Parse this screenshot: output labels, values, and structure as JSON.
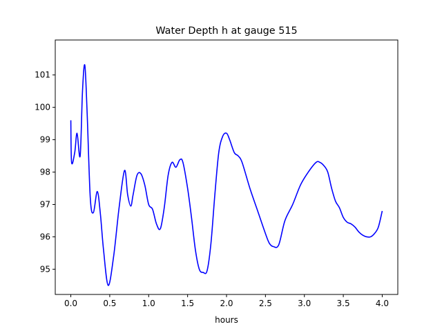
{
  "chart_data": {
    "type": "line",
    "title": "Water Depth h at gauge 515",
    "xlabel": "hours",
    "ylabel": "",
    "xlim": [
      -0.2,
      4.2
    ],
    "ylim": [
      94.22,
      102.08
    ],
    "grid": false,
    "xticks": [
      0.0,
      0.5,
      1.0,
      1.5,
      2.0,
      2.5,
      3.0,
      3.5,
      4.0
    ],
    "xtick_labels": [
      "0.0",
      "0.5",
      "1.0",
      "1.5",
      "2.0",
      "2.5",
      "3.0",
      "3.5",
      "4.0"
    ],
    "yticks": [
      95,
      96,
      97,
      98,
      99,
      100,
      101
    ],
    "ytick_labels": [
      "95",
      "96",
      "97",
      "98",
      "99",
      "100",
      "101"
    ],
    "series": [
      {
        "color": "#0000ff",
        "x": [
          0.0,
          0.01,
          0.05,
          0.08,
          0.12,
          0.15,
          0.18,
          0.21,
          0.25,
          0.29,
          0.34,
          0.38,
          0.42,
          0.48,
          0.55,
          0.62,
          0.69,
          0.73,
          0.77,
          0.8,
          0.85,
          0.9,
          0.95,
          1.0,
          1.05,
          1.1,
          1.15,
          1.2,
          1.25,
          1.3,
          1.35,
          1.4,
          1.44,
          1.5,
          1.55,
          1.6,
          1.65,
          1.7,
          1.75,
          1.8,
          1.85,
          1.9,
          1.95,
          2.0,
          2.04,
          2.1,
          2.15,
          2.2,
          2.3,
          2.4,
          2.5,
          2.55,
          2.6,
          2.67,
          2.75,
          2.85,
          2.95,
          3.05,
          3.15,
          3.2,
          3.25,
          3.3,
          3.35,
          3.4,
          3.45,
          3.5,
          3.55,
          3.6,
          3.65,
          3.7,
          3.75,
          3.8,
          3.85,
          3.9,
          3.95,
          4.0
        ],
        "y": [
          99.6,
          98.3,
          98.6,
          99.2,
          98.5,
          100.5,
          101.3,
          99.8,
          97.2,
          96.75,
          97.4,
          96.7,
          95.6,
          94.5,
          95.4,
          96.9,
          98.05,
          97.3,
          96.95,
          97.3,
          97.9,
          97.95,
          97.6,
          97.0,
          96.85,
          96.4,
          96.25,
          96.9,
          97.9,
          98.3,
          98.15,
          98.38,
          98.3,
          97.5,
          96.6,
          95.6,
          95.0,
          94.9,
          94.95,
          95.8,
          97.3,
          98.6,
          99.1,
          99.2,
          99.0,
          98.6,
          98.5,
          98.3,
          97.5,
          96.8,
          96.1,
          95.8,
          95.7,
          95.75,
          96.5,
          97.0,
          97.6,
          98.0,
          98.3,
          98.3,
          98.2,
          98.0,
          97.5,
          97.1,
          96.9,
          96.6,
          96.45,
          96.4,
          96.3,
          96.15,
          96.05,
          96.0,
          96.0,
          96.1,
          96.3,
          96.8
        ]
      }
    ]
  }
}
